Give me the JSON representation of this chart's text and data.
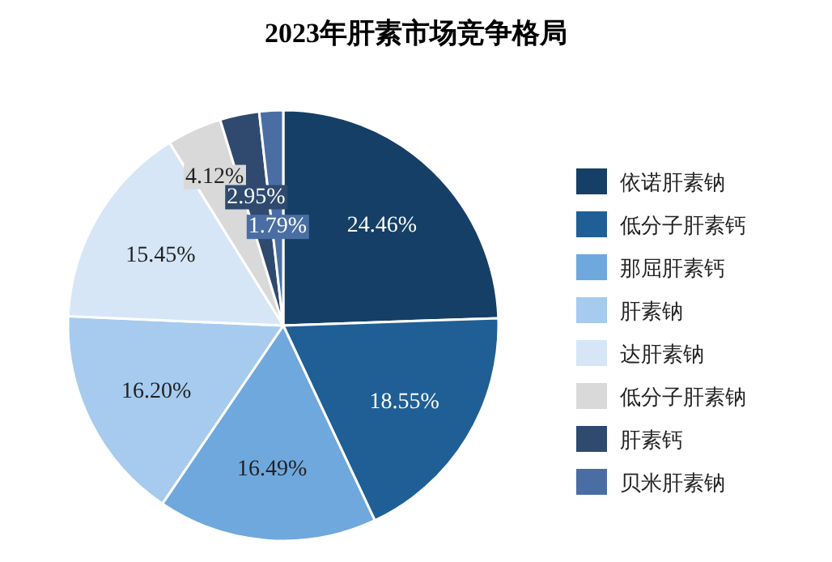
{
  "chart_data": {
    "type": "pie",
    "title": "2023年肝素市场竞争格局",
    "categories": [
      "依诺肝素钠",
      "低分子肝素钙",
      "那屈肝素钙",
      "肝素钠",
      "达肝素钠",
      "低分子肝素钠",
      "肝素钙",
      "贝米肝素钠"
    ],
    "values": [
      24.46,
      18.55,
      16.49,
      16.2,
      15.45,
      4.12,
      2.95,
      1.79
    ],
    "value_labels": [
      "24.46%",
      "18.55%",
      "16.49%",
      "16.20%",
      "15.45%",
      "4.12%",
      "2.95%",
      "1.79%"
    ],
    "colors": [
      "#153f66",
      "#1f5f95",
      "#6fa8dc",
      "#a6cbee",
      "#d6e6f6",
      "#d9d9d9",
      "#2f4a6e",
      "#4a6ea3"
    ],
    "legend": "right"
  }
}
